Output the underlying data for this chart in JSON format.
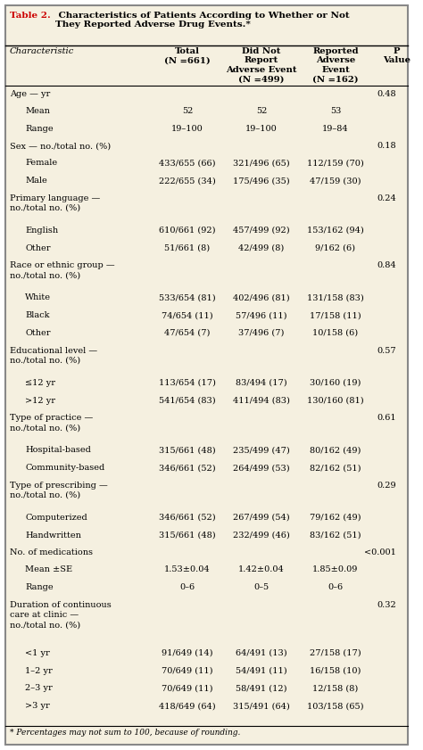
{
  "title_red": "Table 2.",
  "title_black": " Characteristics of Patients According to Whether or Not\nThey Reported Adverse Drug Events.*",
  "bg_color": "#f5f0e0",
  "border_color": "#aaaaaa",
  "header_color": "#cc0000",
  "col_headers": [
    "Characteristic",
    "Total\n(N=661)",
    "Did Not\nReport\nAdverse Event\n(N=499)",
    "Reported\nAdverse\nEvent\n(N=162)",
    "P\nValue"
  ],
  "rows": [
    {
      "label": "Age — yr",
      "indent": 0,
      "total": "",
      "didnot": "",
      "reported": "",
      "pval": "0.48",
      "bold_label": false
    },
    {
      "label": "Mean",
      "indent": 1,
      "total": "52",
      "didnot": "52",
      "reported": "53",
      "pval": "",
      "bold_label": false
    },
    {
      "label": "Range",
      "indent": 1,
      "total": "19–100",
      "didnot": "19–100",
      "reported": "19–84",
      "pval": "",
      "bold_label": false
    },
    {
      "label": "Sex — no./total no. (%)",
      "indent": 0,
      "total": "",
      "didnot": "",
      "reported": "",
      "pval": "0.18",
      "bold_label": false
    },
    {
      "label": "Female",
      "indent": 1,
      "total": "433/655 (66)",
      "didnot": "321/496 (65)",
      "reported": "112/159 (70)",
      "pval": "",
      "bold_label": false
    },
    {
      "label": "Male",
      "indent": 1,
      "total": "222/655 (34)",
      "didnot": "175/496 (35)",
      "reported": "47/159 (30)",
      "pval": "",
      "bold_label": false
    },
    {
      "label": "Primary language —\nno./total no. (%)",
      "indent": 0,
      "total": "",
      "didnot": "",
      "reported": "",
      "pval": "0.24",
      "bold_label": false
    },
    {
      "label": "English",
      "indent": 1,
      "total": "610/661 (92)",
      "didnot": "457/499 (92)",
      "reported": "153/162 (94)",
      "pval": "",
      "bold_label": false
    },
    {
      "label": "Other",
      "indent": 1,
      "total": "51/661 (8)",
      "didnot": "42/499 (8)",
      "reported": "9/162 (6)",
      "pval": "",
      "bold_label": false
    },
    {
      "label": "Race or ethnic group —\nno./total no. (%)",
      "indent": 0,
      "total": "",
      "didnot": "",
      "reported": "",
      "pval": "0.84",
      "bold_label": false
    },
    {
      "label": "White",
      "indent": 1,
      "total": "533/654 (81)",
      "didnot": "402/496 (81)",
      "reported": "131/158 (83)",
      "pval": "",
      "bold_label": false
    },
    {
      "label": "Black",
      "indent": 1,
      "total": "74/654 (11)",
      "didnot": "57/496 (11)",
      "reported": "17/158 (11)",
      "pval": "",
      "bold_label": false
    },
    {
      "label": "Other",
      "indent": 1,
      "total": "47/654 (7)",
      "didnot": "37/496 (7)",
      "reported": "10/158 (6)",
      "pval": "",
      "bold_label": false
    },
    {
      "label": "Educational level —\nno./total no. (%)",
      "indent": 0,
      "total": "",
      "didnot": "",
      "reported": "",
      "pval": "0.57",
      "bold_label": false
    },
    {
      "label": "≤12 yr",
      "indent": 1,
      "total": "113/654 (17)",
      "didnot": "83/494 (17)",
      "reported": "30/160 (19)",
      "pval": "",
      "bold_label": false
    },
    {
      "label": ">12 yr",
      "indent": 1,
      "total": "541/654 (83)",
      "didnot": "411/494 (83)",
      "reported": "130/160 (81)",
      "pval": "",
      "bold_label": false
    },
    {
      "label": "Type of practice —\nno./total no. (%)",
      "indent": 0,
      "total": "",
      "didnot": "",
      "reported": "",
      "pval": "0.61",
      "bold_label": false
    },
    {
      "label": "Hospital-based",
      "indent": 1,
      "total": "315/661 (48)",
      "didnot": "235/499 (47)",
      "reported": "80/162 (49)",
      "pval": "",
      "bold_label": false
    },
    {
      "label": "Community-based",
      "indent": 1,
      "total": "346/661 (52)",
      "didnot": "264/499 (53)",
      "reported": "82/162 (51)",
      "pval": "",
      "bold_label": false
    },
    {
      "label": "Type of prescribing —\nno./total no. (%)",
      "indent": 0,
      "total": "",
      "didnot": "",
      "reported": "",
      "pval": "0.29",
      "bold_label": false
    },
    {
      "label": "Computerized",
      "indent": 1,
      "total": "346/661 (52)",
      "didnot": "267/499 (54)",
      "reported": "79/162 (49)",
      "pval": "",
      "bold_label": false
    },
    {
      "label": "Handwritten",
      "indent": 1,
      "total": "315/661 (48)",
      "didnot": "232/499 (46)",
      "reported": "83/162 (51)",
      "pval": "",
      "bold_label": false
    },
    {
      "label": "No. of medications",
      "indent": 0,
      "total": "",
      "didnot": "",
      "reported": "",
      "pval": "<0.001",
      "bold_label": false
    },
    {
      "label": "Mean ±SE",
      "indent": 1,
      "total": "1.53±0.04",
      "didnot": "1.42±0.04",
      "reported": "1.85±0.09",
      "pval": "",
      "bold_label": false
    },
    {
      "label": "Range",
      "indent": 1,
      "total": "0–6",
      "didnot": "0–5",
      "reported": "0–6",
      "pval": "",
      "bold_label": false
    },
    {
      "label": "Duration of continuous\ncare at clinic —\nno./total no. (%)",
      "indent": 0,
      "total": "",
      "didnot": "",
      "reported": "",
      "pval": "0.32",
      "bold_label": false
    },
    {
      "label": "<1 yr",
      "indent": 1,
      "total": "91/649 (14)",
      "didnot": "64/491 (13)",
      "reported": "27/158 (17)",
      "pval": "",
      "bold_label": false
    },
    {
      "label": "1–2 yr",
      "indent": 1,
      "total": "70/649 (11)",
      "didnot": "54/491 (11)",
      "reported": "16/158 (10)",
      "pval": "",
      "bold_label": false
    },
    {
      "label": "2–3 yr",
      "indent": 1,
      "total": "70/649 (11)",
      "didnot": "58/491 (12)",
      "reported": "12/158 (8)",
      "pval": "",
      "bold_label": false
    },
    {
      "label": ">3 yr",
      "indent": 1,
      "total": "418/649 (64)",
      "didnot": "315/491 (64)",
      "reported": "103/158 (65)",
      "pval": "",
      "bold_label": false
    }
  ],
  "footnote": "* Percentages may not sum to 100, because of rounding."
}
